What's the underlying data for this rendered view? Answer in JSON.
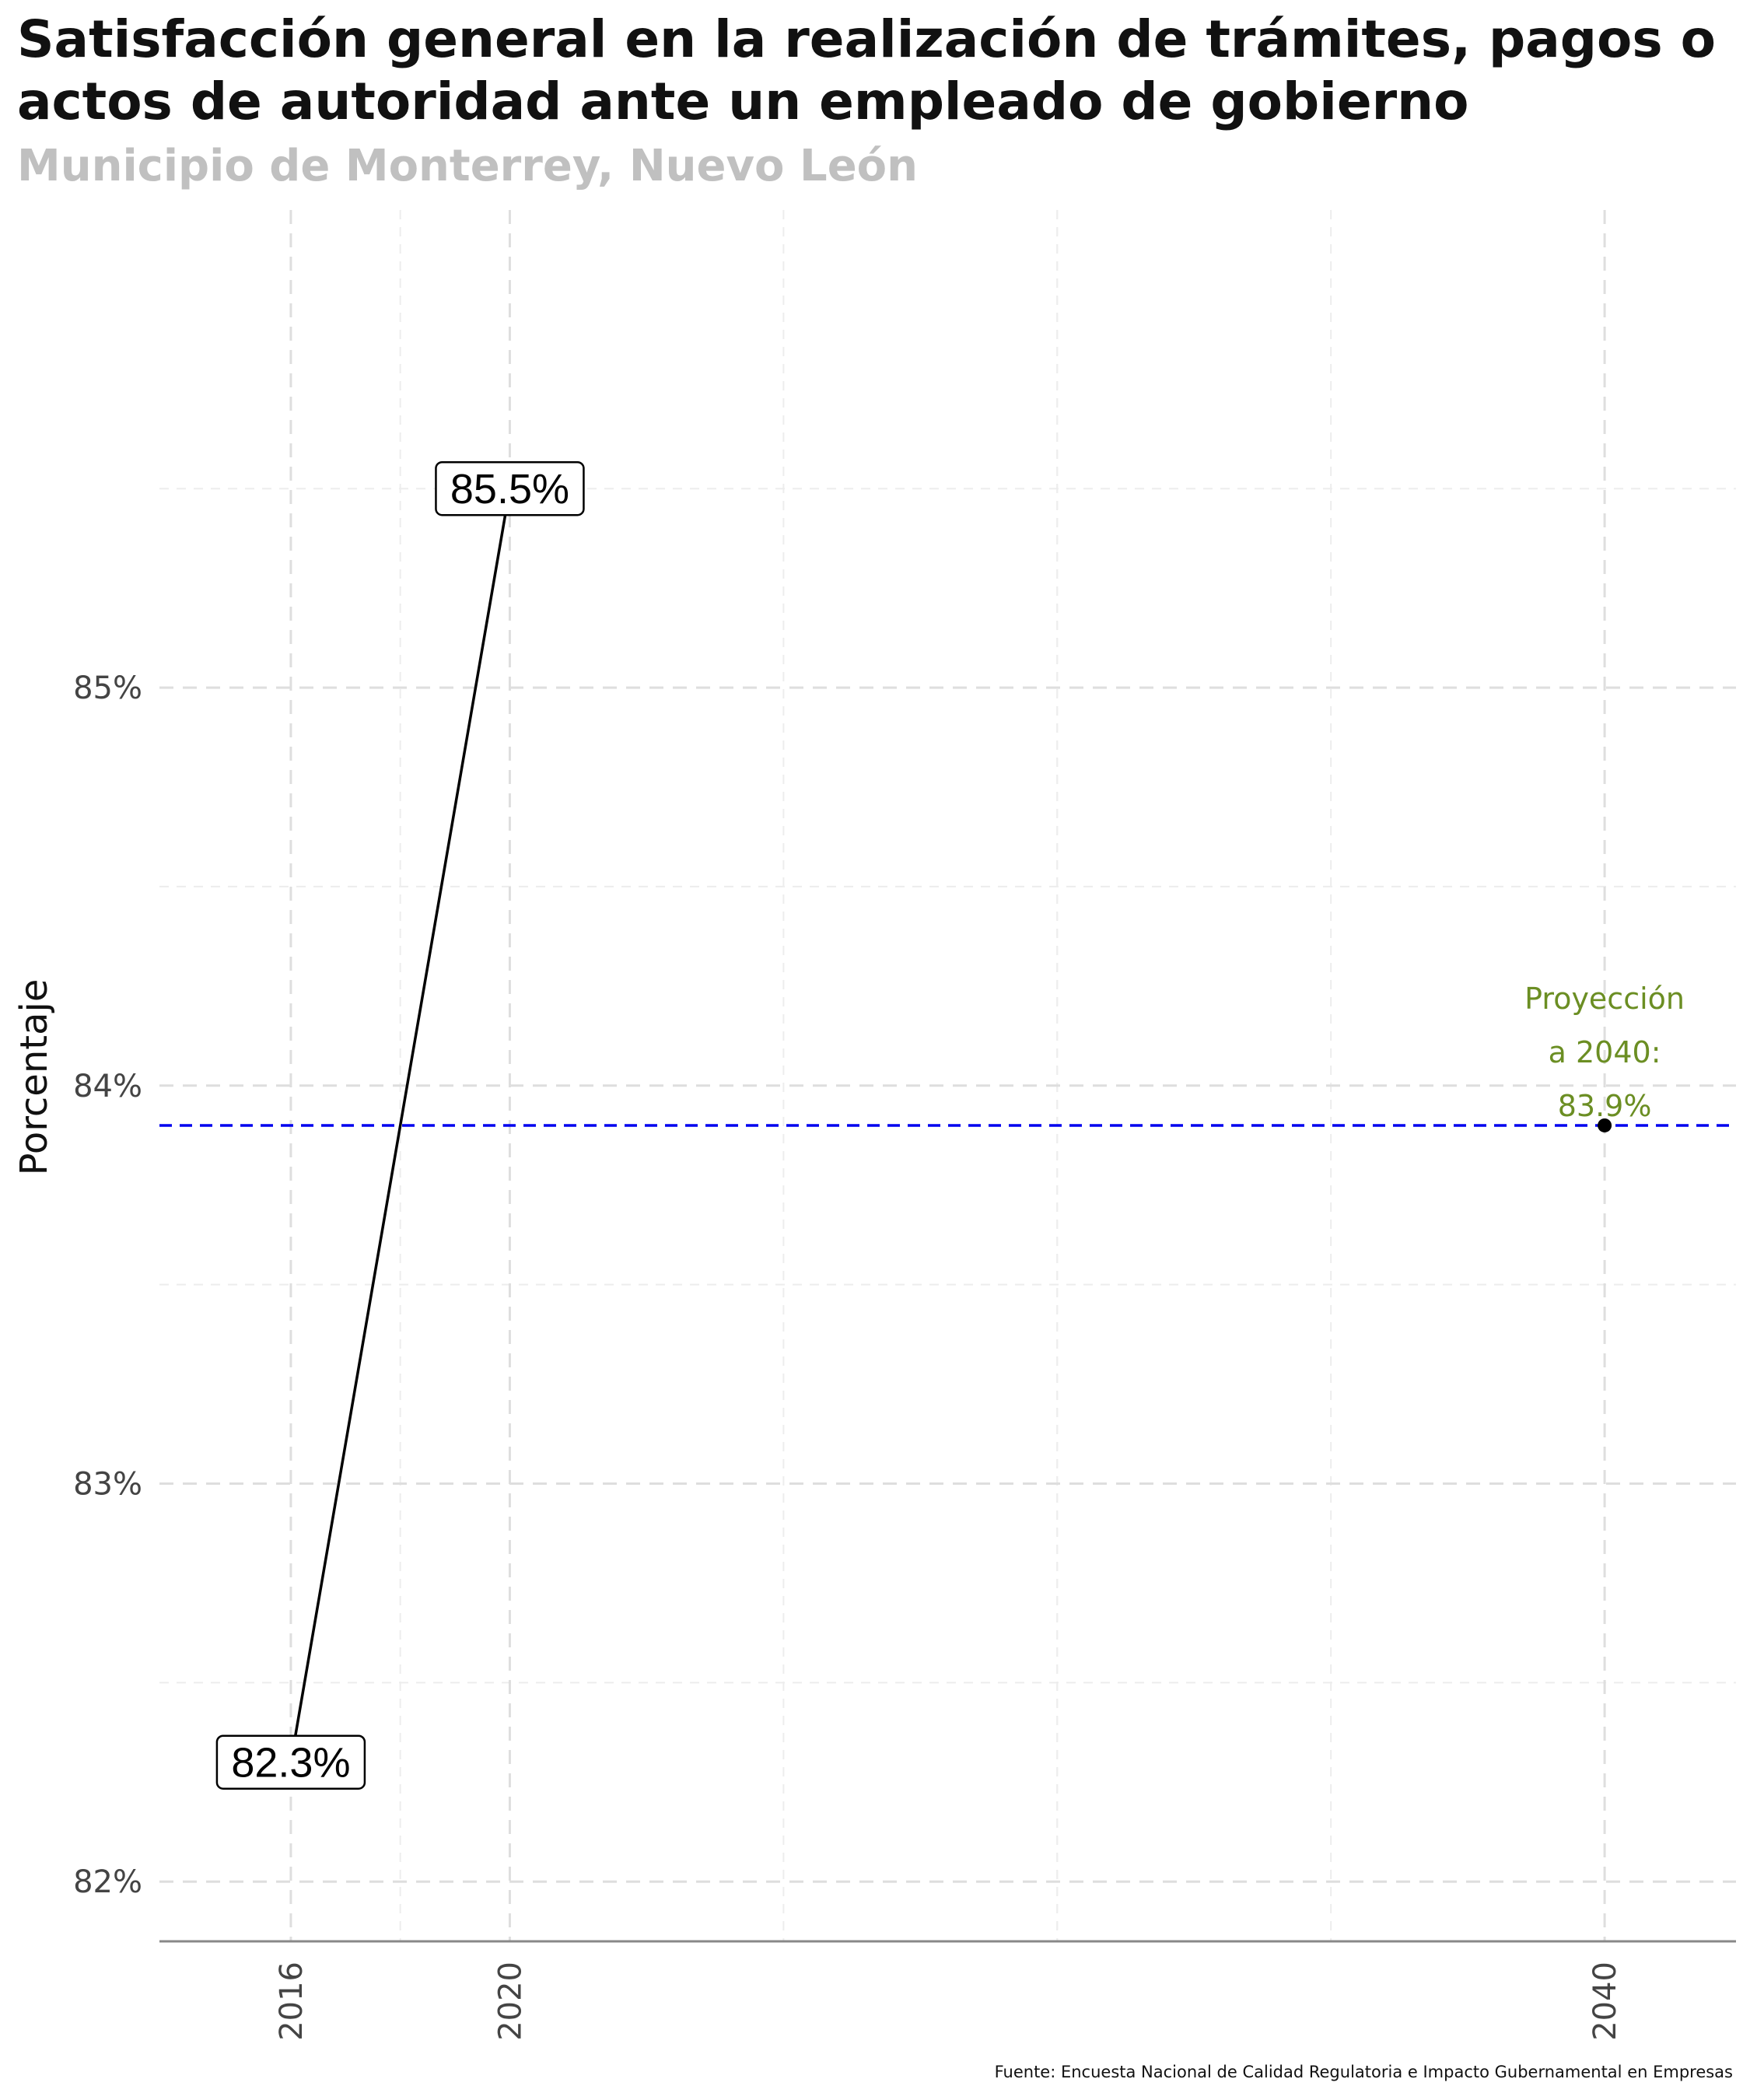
{
  "chart_data": {
    "type": "line",
    "title_lines": [
      "Satisfacción general en la realización de trámites, pagos o",
      "actos de autoridad ante un empleado de gobierno"
    ],
    "subtitle": "Municipio de Monterrey, Nuevo León",
    "ylabel": "Porcentaje",
    "caption": "Fuente: Encuesta Nacional de Calidad Regulatoria e Impacto Gubernamental en Empresas",
    "x": [
      2016,
      2020
    ],
    "values": [
      82.3,
      85.5
    ],
    "value_labels": [
      "82.3%",
      "85.5%"
    ],
    "xlim": [
      2013.6,
      2042.4
    ],
    "ylim": [
      81.85,
      86.2
    ],
    "y_ticks": [
      82,
      83,
      84,
      85
    ],
    "y_tick_labels": [
      "82%",
      "83%",
      "84%",
      "85%"
    ],
    "x_ticks": [
      2016,
      2020,
      2040
    ],
    "x_tick_labels": [
      "2016",
      "2020",
      "2040"
    ],
    "projection": {
      "x": 2040,
      "value": 83.9,
      "label_lines": [
        "Proyección",
        "a 2040:",
        "83.9%"
      ],
      "line_color": "#0000ee",
      "label_color": "#6b8e23"
    },
    "grid": true
  }
}
